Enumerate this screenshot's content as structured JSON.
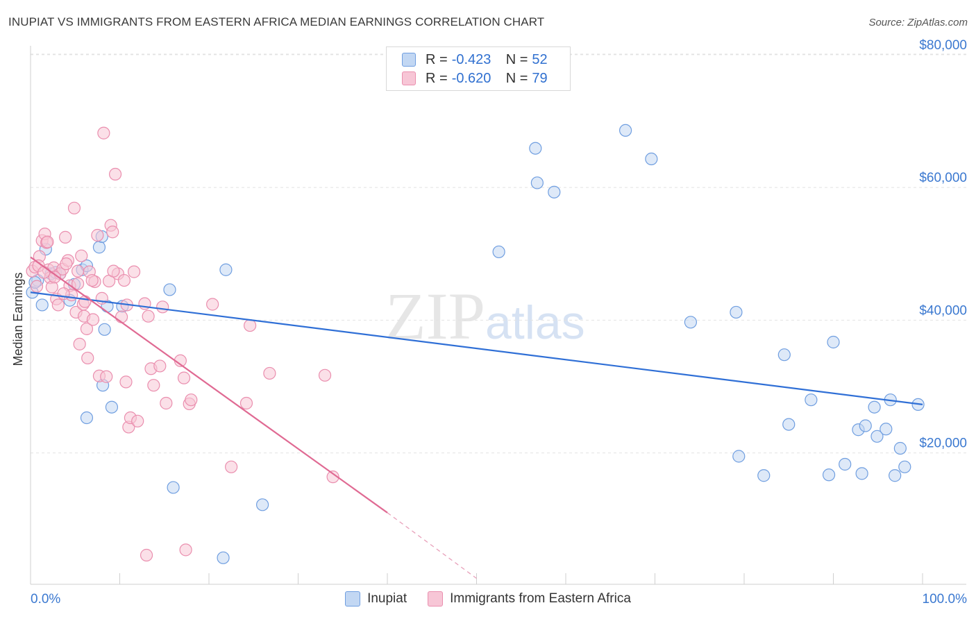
{
  "title": "INUPIAT VS IMMIGRANTS FROM EASTERN AFRICA MEDIAN EARNINGS CORRELATION CHART",
  "source": "Source: ZipAtlas.com",
  "watermark": {
    "zip": "ZIP",
    "atlas": "atlas"
  },
  "legend_top": [
    {
      "r_label": "R = ",
      "r_value": "-0.423",
      "n_label": "N = ",
      "n_value": "52"
    },
    {
      "r_label": "R = ",
      "r_value": "-0.620",
      "n_label": "N = ",
      "n_value": "79"
    }
  ],
  "chart_data": {
    "type": "scatter",
    "title": "INUPIAT VS IMMIGRANTS FROM EASTERN AFRICA MEDIAN EARNINGS CORRELATION CHART",
    "xlabel": "",
    "ylabel": "Median Earnings",
    "xlim": [
      0,
      100
    ],
    "ylim": [
      0,
      82000
    ],
    "x_tick_labels": [
      "0.0%",
      "100.0%"
    ],
    "y_ticks": [
      20000,
      40000,
      60000,
      80000
    ],
    "y_tick_labels": [
      "$20,000",
      "$40,000",
      "$60,000",
      "$80,000"
    ],
    "grid": "horizontal dashed",
    "legend_position": "bottom",
    "series": [
      {
        "name": "Inupiat",
        "color": "#6f9ee0",
        "fill": "#c2d7f3",
        "trend": {
          "x": [
            0,
            100
          ],
          "y": [
            44200,
            27300
          ]
        },
        "points": [
          [
            0.2,
            44200
          ],
          [
            0.8,
            46000
          ],
          [
            1.3,
            42300
          ],
          [
            1.7,
            50700
          ],
          [
            2.3,
            47000
          ],
          [
            2.8,
            47200
          ],
          [
            3.3,
            47000
          ],
          [
            4.4,
            43000
          ],
          [
            4.9,
            45400
          ],
          [
            5.8,
            47600
          ],
          [
            6.3,
            48200
          ],
          [
            7.7,
            51000
          ],
          [
            8.0,
            52600
          ],
          [
            8.1,
            30200
          ],
          [
            8.3,
            38600
          ],
          [
            8.6,
            42100
          ],
          [
            9.1,
            26900
          ],
          [
            10.3,
            42100
          ],
          [
            6.3,
            25300
          ],
          [
            15.6,
            44600
          ],
          [
            16.0,
            14800
          ],
          [
            21.6,
            4200
          ],
          [
            21.9,
            47600
          ],
          [
            26.0,
            12200
          ],
          [
            52.5,
            50300
          ],
          [
            56.6,
            65900
          ],
          [
            56.8,
            60700
          ],
          [
            58.7,
            59300
          ],
          [
            66.7,
            68600
          ],
          [
            69.6,
            64300
          ],
          [
            74.0,
            39700
          ],
          [
            79.1,
            41200
          ],
          [
            79.4,
            19500
          ],
          [
            82.2,
            16600
          ],
          [
            84.5,
            34800
          ],
          [
            85.0,
            24300
          ],
          [
            87.5,
            28000
          ],
          [
            89.5,
            16700
          ],
          [
            90.0,
            36700
          ],
          [
            91.3,
            18300
          ],
          [
            92.8,
            23500
          ],
          [
            93.2,
            16900
          ],
          [
            93.6,
            24100
          ],
          [
            94.6,
            26900
          ],
          [
            94.9,
            22500
          ],
          [
            95.9,
            23600
          ],
          [
            96.4,
            28000
          ],
          [
            96.9,
            16600
          ],
          [
            97.5,
            20700
          ],
          [
            98.0,
            17900
          ],
          [
            99.5,
            27300
          ],
          [
            0.5,
            45700
          ]
        ]
      },
      {
        "name": "Immigrants from Eastern Africa",
        "color": "#ea8eae",
        "fill": "#f7c6d6",
        "trend": {
          "x": [
            0,
            40
          ],
          "y": [
            49500,
            11000
          ]
        },
        "trend_dashed": {
          "x": [
            40,
            50
          ],
          "y": [
            11000,
            1100
          ]
        },
        "points": [
          [
            0.2,
            47400
          ],
          [
            0.5,
            48000
          ],
          [
            0.7,
            45100
          ],
          [
            1.0,
            49600
          ],
          [
            1.3,
            52000
          ],
          [
            1.6,
            53000
          ],
          [
            1.8,
            51700
          ],
          [
            2.0,
            47600
          ],
          [
            2.2,
            46400
          ],
          [
            2.6,
            47900
          ],
          [
            2.9,
            43200
          ],
          [
            3.1,
            42300
          ],
          [
            3.3,
            47000
          ],
          [
            3.6,
            47700
          ],
          [
            3.9,
            52500
          ],
          [
            4.2,
            49000
          ],
          [
            4.4,
            45200
          ],
          [
            4.6,
            43800
          ],
          [
            4.9,
            56900
          ],
          [
            5.1,
            41200
          ],
          [
            5.3,
            47400
          ],
          [
            5.5,
            36400
          ],
          [
            5.7,
            49700
          ],
          [
            5.9,
            42400
          ],
          [
            6.0,
            40600
          ],
          [
            6.3,
            38700
          ],
          [
            6.4,
            34300
          ],
          [
            6.6,
            47300
          ],
          [
            7.0,
            40100
          ],
          [
            7.2,
            45800
          ],
          [
            7.5,
            52800
          ],
          [
            7.7,
            31600
          ],
          [
            8.0,
            43300
          ],
          [
            8.2,
            68200
          ],
          [
            8.5,
            31500
          ],
          [
            8.8,
            45900
          ],
          [
            9.0,
            54300
          ],
          [
            9.2,
            53300
          ],
          [
            9.5,
            62000
          ],
          [
            9.8,
            47000
          ],
          [
            10.2,
            40500
          ],
          [
            10.5,
            46000
          ],
          [
            10.8,
            42300
          ],
          [
            10.7,
            30700
          ],
          [
            11.0,
            23900
          ],
          [
            11.2,
            25300
          ],
          [
            11.6,
            47300
          ],
          [
            12.0,
            24800
          ],
          [
            12.8,
            42500
          ],
          [
            13.2,
            40600
          ],
          [
            13.5,
            32700
          ],
          [
            13.8,
            30200
          ],
          [
            14.5,
            33100
          ],
          [
            14.8,
            42000
          ],
          [
            15.2,
            27500
          ],
          [
            16.8,
            33900
          ],
          [
            17.2,
            31300
          ],
          [
            17.8,
            27400
          ],
          [
            18.0,
            28000
          ],
          [
            20.4,
            42400
          ],
          [
            22.5,
            17900
          ],
          [
            24.2,
            27500
          ],
          [
            24.6,
            39200
          ],
          [
            26.8,
            32000
          ],
          [
            33.0,
            31700
          ],
          [
            33.9,
            16400
          ],
          [
            13.0,
            4600
          ],
          [
            17.4,
            5400
          ],
          [
            0.9,
            48200
          ],
          [
            1.9,
            51800
          ],
          [
            2.4,
            45000
          ],
          [
            3.7,
            44000
          ],
          [
            5.3,
            45500
          ],
          [
            6.9,
            46000
          ],
          [
            2.7,
            46500
          ],
          [
            4.0,
            48500
          ],
          [
            1.5,
            47200
          ],
          [
            6.1,
            42800
          ],
          [
            9.3,
            47400
          ]
        ]
      }
    ]
  }
}
